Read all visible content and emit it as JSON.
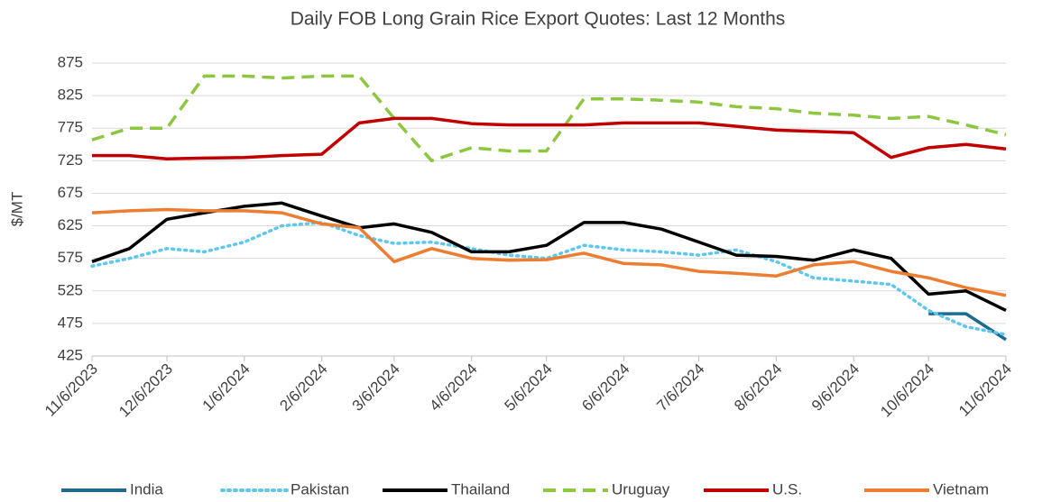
{
  "chart_data": {
    "type": "line",
    "title": "Daily FOB Long Grain Rice Export Quotes: Last 12 Months",
    "y_label": "$/MT",
    "x": [
      "11/6/2023",
      "11/21/2023",
      "12/6/2023",
      "12/21/2023",
      "1/6/2024",
      "1/21/2024",
      "2/6/2024",
      "2/21/2024",
      "3/6/2024",
      "3/21/2024",
      "4/6/2024",
      "4/21/2024",
      "5/6/2024",
      "5/21/2024",
      "6/6/2024",
      "6/21/2024",
      "7/6/2024",
      "7/21/2024",
      "8/6/2024",
      "8/21/2024",
      "9/6/2024",
      "9/21/2024",
      "10/6/2024",
      "10/21/2024",
      "11/6/2024"
    ],
    "series": [
      {
        "name": "India",
        "color": "#1f6b8e",
        "style": "solid",
        "values": [
          null,
          null,
          null,
          null,
          null,
          null,
          null,
          null,
          null,
          null,
          null,
          null,
          null,
          null,
          null,
          null,
          null,
          null,
          null,
          null,
          null,
          null,
          490,
          490,
          450
        ]
      },
      {
        "name": "Pakistan",
        "color": "#5ec7ef",
        "style": "dotted",
        "values": [
          563,
          575,
          590,
          585,
          600,
          625,
          630,
          610,
          598,
          600,
          590,
          580,
          575,
          595,
          588,
          585,
          580,
          588,
          570,
          545,
          540,
          535,
          495,
          470,
          458
        ]
      },
      {
        "name": "Thailand",
        "color": "#000000",
        "style": "solid",
        "values": [
          570,
          590,
          635,
          645,
          655,
          660,
          640,
          622,
          628,
          615,
          585,
          585,
          595,
          630,
          630,
          620,
          600,
          580,
          578,
          572,
          588,
          575,
          520,
          525,
          495
        ]
      },
      {
        "name": "Uruguay",
        "color": "#8dc63f",
        "style": "dashed",
        "values": [
          757,
          775,
          775,
          855,
          855,
          852,
          855,
          855,
          790,
          725,
          745,
          740,
          740,
          820,
          820,
          818,
          815,
          808,
          805,
          798,
          795,
          790,
          793,
          780,
          765
        ]
      },
      {
        "name": "U.S.",
        "color": "#c00000",
        "style": "solid",
        "values": [
          733,
          733,
          728,
          729,
          730,
          733,
          735,
          783,
          790,
          790,
          782,
          780,
          780,
          780,
          783,
          783,
          783,
          778,
          772,
          770,
          768,
          730,
          745,
          750,
          743
        ]
      },
      {
        "name": "Vietnam",
        "color": "#ed7d31",
        "style": "solid",
        "values": [
          645,
          648,
          650,
          648,
          648,
          645,
          628,
          622,
          570,
          590,
          575,
          572,
          573,
          583,
          567,
          565,
          555,
          552,
          548,
          565,
          570,
          555,
          545,
          530,
          518
        ]
      }
    ],
    "xlim": [
      "11/6/2023",
      "11/6/2024"
    ],
    "xticks": [
      "11/6/2023",
      "12/6/2023",
      "1/6/2024",
      "2/6/2024",
      "3/6/2024",
      "4/6/2024",
      "5/6/2024",
      "6/6/2024",
      "7/6/2024",
      "8/6/2024",
      "9/6/2024",
      "10/6/2024",
      "11/6/2024"
    ],
    "ylim": [
      425,
      875
    ],
    "yticks": [
      425,
      475,
      525,
      575,
      625,
      675,
      725,
      775,
      825,
      875
    ],
    "grid": true,
    "legend": "bottom"
  }
}
